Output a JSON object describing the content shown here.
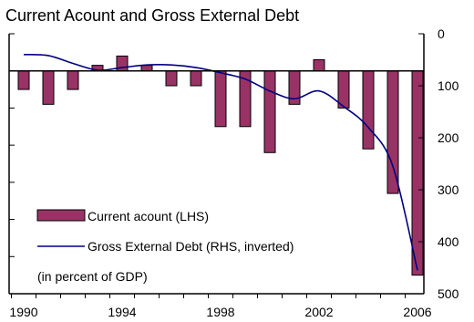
{
  "chart_data": {
    "type": "bar+line",
    "title": "Current Acount and Gross External Debt",
    "note": "(in percent of GDP)",
    "x_ticks": [
      "1990",
      "1994",
      "1998",
      "2002",
      "2006"
    ],
    "years": [
      1990,
      1991,
      1992,
      1993,
      1994,
      1995,
      1996,
      1997,
      1998,
      1999,
      2000,
      2001,
      2002,
      2003,
      2004,
      2005,
      2006
    ],
    "series": [
      {
        "name": "Current acount (LHS)",
        "axis": "left",
        "kind": "bar",
        "color": "#993366",
        "values": [
          -5,
          -9,
          -5,
          1.5,
          4,
          1.5,
          -4,
          -4,
          -15,
          -15,
          -22,
          -9,
          3,
          -10,
          -21,
          -33,
          -55
        ]
      },
      {
        "name": "Gross External Debt (RHS, inverted)",
        "axis": "right",
        "kind": "line",
        "color": "#000080",
        "values": [
          40,
          42,
          57,
          70,
          65,
          60,
          60,
          65,
          75,
          87,
          110,
          125,
          110,
          140,
          180,
          255,
          455
        ]
      }
    ],
    "y_left": {
      "min": -60,
      "max": 10,
      "ticks": [
        -60,
        -50,
        -40,
        -30,
        -20,
        -10,
        0,
        10
      ],
      "labels_shown": false
    },
    "y_right": {
      "min": 0,
      "max": 500,
      "inverted": true,
      "ticks": [
        0,
        100,
        200,
        300,
        400,
        500
      ]
    },
    "legend_position": "bottom-left",
    "grid": false
  }
}
